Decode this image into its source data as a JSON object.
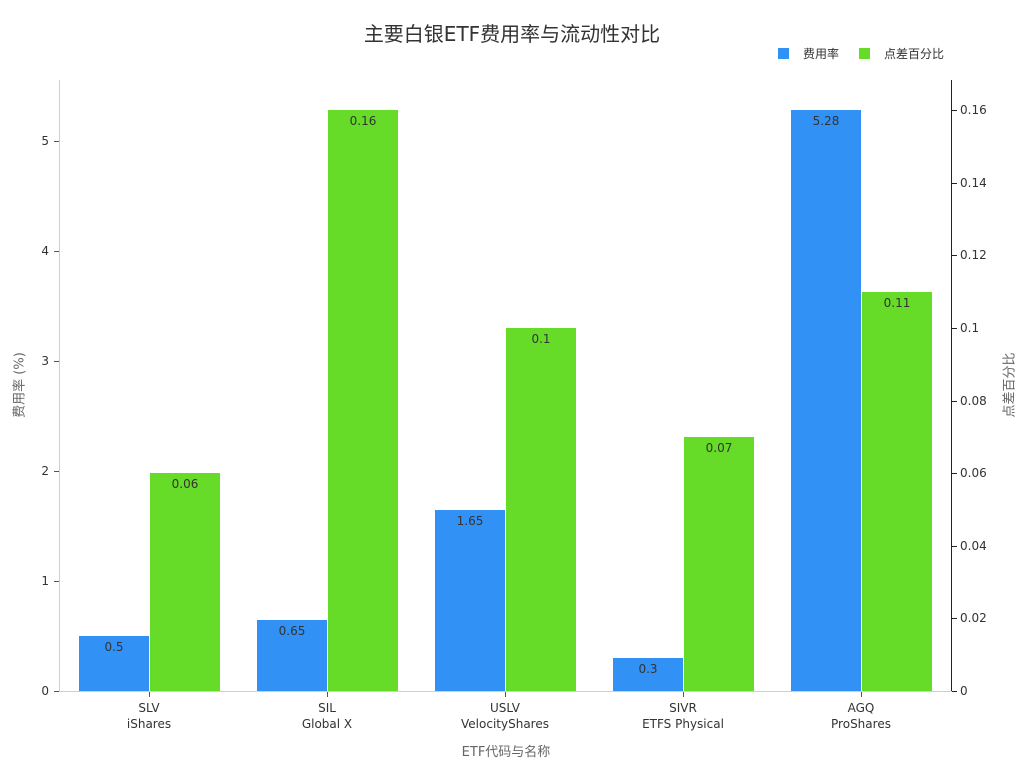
{
  "chart_data": {
    "type": "bar",
    "title": "主要白银ETF费用率与流动性对比",
    "xlabel": "ETF代码与名称",
    "ylabel": "费用率 (%)",
    "ylabel_right": "点差百分比",
    "categories": [
      {
        "code": "SLV",
        "name": "iShares"
      },
      {
        "code": "SIL",
        "name": "Global X"
      },
      {
        "code": "USLV",
        "name": "VelocityShares"
      },
      {
        "code": "SIVR",
        "name": "ETFS Physical"
      },
      {
        "code": "AGQ",
        "name": "ProShares"
      }
    ],
    "series": [
      {
        "name": "费用率",
        "axis": "left",
        "color": "#3191f5",
        "values": [
          0.5,
          0.65,
          1.65,
          0.3,
          5.28
        ],
        "labels": [
          "0.5",
          "0.65",
          "1.65",
          "0.3",
          "5.28"
        ]
      },
      {
        "name": "点差百分比",
        "axis": "right",
        "color": "#66db28",
        "values": [
          0.06,
          0.16,
          0.1,
          0.07,
          0.11
        ],
        "labels": [
          "0.06",
          "0.16",
          "0.1",
          "0.07",
          "0.11"
        ]
      }
    ],
    "ylim_left": [
      0,
      5.56
    ],
    "ylim_right": [
      0,
      0.168
    ],
    "yticks_left": [
      "0",
      "1",
      "2",
      "3",
      "4",
      "5"
    ],
    "yticks_right": [
      "0",
      "0.02",
      "0.04",
      "0.06",
      "0.08",
      "0.1",
      "0.12",
      "0.14",
      "0.16"
    ],
    "legend_position": "top-right",
    "grid": false
  }
}
